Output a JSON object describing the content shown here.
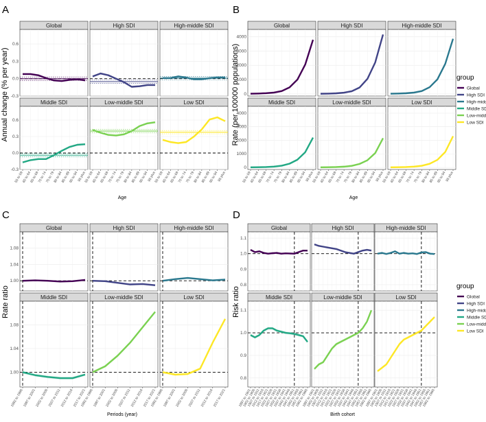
{
  "colors": {
    "Global": "#440154",
    "High SDI": "#414487",
    "High-middle SDI": "#2a788e",
    "Middle SDI": "#22a884",
    "Low-middle SDI": "#7ad151",
    "Low SDI": "#fde725"
  },
  "legend": {
    "title": "group",
    "items": [
      "Global",
      "High SDI",
      "High-middle SDI",
      "Middle SDI",
      "Low-middle SDI",
      "Low SDI"
    ]
  },
  "chart_data": [
    {
      "id": "A",
      "letter": "A",
      "type": "line",
      "ylabel": "Annual change (% per year)",
      "xlabel": "Age",
      "ylim": [
        -0.3,
        0.85
      ],
      "yticks": [
        -0.3,
        0.0,
        0.3,
        0.6
      ],
      "ytick_labels": [
        "-0.3",
        "0.0",
        "0.3",
        "0.6"
      ],
      "reference_y": 0,
      "categories": [
        "55 to 59",
        "60 to 64",
        "65 to 69",
        "70 to 74",
        "75 to 79",
        "80 to 84",
        "85 to 89",
        "90 to 94",
        "95 plus"
      ],
      "facets": [
        {
          "name": "Global",
          "values": [
            0.08,
            0.08,
            0.06,
            0.01,
            -0.03,
            -0.04,
            -0.02,
            -0.01,
            -0.03
          ],
          "hline": 0.0
        },
        {
          "name": "High SDI",
          "values": [
            0.04,
            0.09,
            0.06,
            0.0,
            -0.06,
            -0.14,
            -0.13,
            -0.11,
            -0.11
          ],
          "hline": -0.05
        },
        {
          "name": "High-middle SDI",
          "values": [
            0.01,
            0.01,
            0.04,
            0.02,
            -0.01,
            -0.01,
            0.01,
            0.02,
            0.02
          ],
          "hline": 0.01
        },
        {
          "name": "Middle SDI",
          "values": [
            -0.17,
            -0.13,
            -0.11,
            -0.11,
            -0.04,
            0.04,
            0.11,
            0.15,
            0.16
          ],
          "hline": -0.04
        },
        {
          "name": "Low-middle SDI",
          "values": [
            0.42,
            0.37,
            0.33,
            0.32,
            0.34,
            0.4,
            0.49,
            0.54,
            0.56
          ],
          "hline": 0.4
        },
        {
          "name": "Low SDI",
          "values": [
            0.24,
            0.2,
            0.18,
            0.2,
            0.3,
            0.43,
            0.61,
            0.65,
            0.58
          ],
          "hline": 0.38
        }
      ]
    },
    {
      "id": "B",
      "letter": "B",
      "type": "line",
      "ylabel": "Rate (per 100000 populations)",
      "xlabel": "Age",
      "ylim": [
        -150,
        4500
      ],
      "yticks": [
        0,
        1000,
        2000,
        3000,
        4000
      ],
      "ytick_labels": [
        "0",
        "1000",
        "2000",
        "3000",
        "4000"
      ],
      "categories": [
        "55 to 59",
        "60 to 64",
        "65 to 69",
        "70 to 74",
        "75 to 79",
        "80 to 84",
        "85 to 89",
        "90 to 94",
        "95 plus"
      ],
      "facets": [
        {
          "name": "Global",
          "values": [
            15,
            28,
            50,
            95,
            200,
            460,
            1000,
            2050,
            3780
          ]
        },
        {
          "name": "High SDI",
          "values": [
            12,
            22,
            42,
            85,
            190,
            450,
            1050,
            2200,
            4150
          ]
        },
        {
          "name": "High-middle SDI",
          "values": [
            14,
            26,
            48,
            95,
            200,
            470,
            1020,
            2100,
            3850
          ]
        },
        {
          "name": "Middle SDI",
          "values": [
            10,
            18,
            32,
            62,
            130,
            280,
            570,
            1120,
            2200
          ]
        },
        {
          "name": "Low-middle SDI",
          "values": [
            9,
            16,
            30,
            58,
            120,
            260,
            530,
            1060,
            2150
          ]
        },
        {
          "name": "Low SDI",
          "values": [
            9,
            17,
            31,
            60,
            125,
            270,
            560,
            1140,
            2300
          ]
        }
      ]
    },
    {
      "id": "C",
      "letter": "C",
      "type": "line",
      "ylabel": "Rate ratio",
      "xlabel": "Periods (year)",
      "ylim": [
        0.975,
        1.12
      ],
      "yticks": [
        1.0,
        1.04,
        1.08
      ],
      "ytick_labels": [
        "1.00",
        "1.04",
        "1.08"
      ],
      "reference_y": 1.0,
      "vline_index": 0,
      "categories": [
        "1992 to 1996",
        "1997 to 2001",
        "2002 to 2006",
        "2007 to 2011",
        "2012 to 2016",
        "2017 to 2021"
      ],
      "facets": [
        {
          "name": "Global",
          "values": [
            1.0,
            1.001,
            1.0,
            0.998,
            0.999,
            1.002
          ]
        },
        {
          "name": "High SDI",
          "values": [
            1.0,
            0.999,
            0.995,
            0.991,
            0.992,
            0.989
          ]
        },
        {
          "name": "High-middle SDI",
          "values": [
            1.0,
            1.004,
            1.007,
            1.004,
            1.001,
            1.003
          ]
        },
        {
          "name": "Middle SDI",
          "values": [
            1.0,
            0.995,
            0.992,
            0.99,
            0.99,
            0.996
          ]
        },
        {
          "name": "Low-middle SDI",
          "values": [
            1.0,
            1.01,
            1.028,
            1.05,
            1.076,
            1.102
          ]
        },
        {
          "name": "Low SDI",
          "values": [
            1.0,
            0.996,
            0.997,
            1.006,
            1.05,
            1.09
          ]
        }
      ]
    },
    {
      "id": "D",
      "letter": "D",
      "type": "line",
      "ylabel": "Risk ratio",
      "xlabel": "Birth cohort",
      "ylim": [
        0.76,
        1.14
      ],
      "yticks": [
        0.8,
        0.9,
        1.0,
        1.1
      ],
      "ytick_labels": [
        "0.8",
        "0.9",
        "1.0",
        "1.1"
      ],
      "reference_y": 1.0,
      "vline_index": 10,
      "categories": [
        "1897 to 1901",
        "1902 to 1906",
        "1907 to 1911",
        "1912 to 1916",
        "1917 to 1921",
        "1922 to 1926",
        "1927 to 1931",
        "1932 to 1936",
        "1937 to 1941",
        "1942 to 1946",
        "1947 to 1951",
        "1952 to 1956",
        "1957 to 1961",
        "1962 to 1966"
      ],
      "facets": [
        {
          "name": "Global",
          "values": [
            1.025,
            1.01,
            1.015,
            1.005,
            1.0,
            1.003,
            1.005,
            1.0,
            1.002,
            1.001,
            1.0,
            1.01,
            1.02,
            1.02
          ]
        },
        {
          "name": "High SDI",
          "values": [
            1.06,
            1.05,
            1.045,
            1.04,
            1.035,
            1.03,
            1.02,
            1.01,
            1.005,
            1.0,
            1.01,
            1.02,
            1.025,
            1.02
          ]
        },
        {
          "name": "High-middle SDI",
          "values": [
            1.0,
            1.005,
            0.998,
            1.005,
            1.015,
            1.0,
            1.005,
            1.0,
            1.002,
            0.998,
            1.008,
            1.01,
            1.0,
            0.998
          ]
        },
        {
          "name": "Middle SDI",
          "values": [
            0.99,
            0.98,
            0.99,
            1.01,
            1.02,
            1.02,
            1.01,
            1.005,
            1.0,
            0.998,
            0.995,
            0.99,
            0.985,
            0.96
          ]
        },
        {
          "name": "Low-middle SDI",
          "values": [
            0.84,
            0.86,
            0.87,
            0.9,
            0.93,
            0.95,
            0.96,
            0.97,
            0.98,
            0.99,
            1.0,
            1.02,
            1.05,
            1.1
          ]
        },
        {
          "name": "Low SDI",
          "values": [
            0.83,
            0.845,
            0.86,
            0.89,
            0.92,
            0.95,
            0.97,
            0.98,
            0.99,
            1.0,
            1.01,
            1.03,
            1.05,
            1.07
          ]
        }
      ]
    }
  ]
}
